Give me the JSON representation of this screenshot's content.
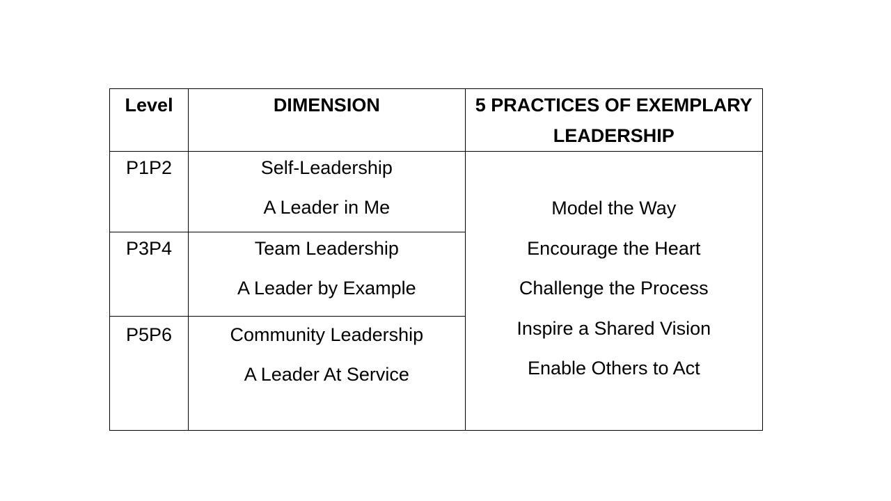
{
  "table": {
    "headers": {
      "level": "Level",
      "dimension": "DIMENSION",
      "practices_line1": "5 PRACTICES OF EXEMPLARY",
      "practices_line2": "LEADERSHIP"
    },
    "rows": [
      {
        "level": "P1P2",
        "dimension": "Self-Leadership",
        "subtitle": "A Leader in Me"
      },
      {
        "level": "P3P4",
        "dimension": "Team Leadership",
        "subtitle": "A Leader by Example"
      },
      {
        "level": "P5P6",
        "dimension": "Community Leadership",
        "subtitle": "A Leader At Service"
      }
    ],
    "practices": [
      "Model the Way",
      "Encourage the Heart",
      "Challenge the Process",
      "Inspire a Shared Vision",
      "Enable Others to Act"
    ]
  }
}
